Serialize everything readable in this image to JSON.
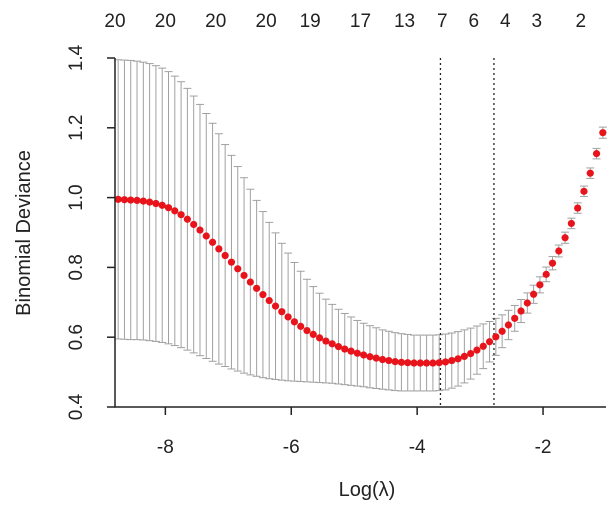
{
  "chart_data": {
    "type": "scatter",
    "xlabel": "Log(λ)",
    "ylabel": "Binomial Deviance",
    "xlim": [
      -8.8,
      -1.0
    ],
    "ylim": [
      0.4,
      1.4
    ],
    "x_ticks": [
      -8,
      -6,
      -4,
      -2
    ],
    "x_tick_labels": [
      "-8",
      "-6",
      "-4",
      "-2"
    ],
    "y_ticks": [
      0.4,
      0.6,
      0.8,
      1.0,
      1.2,
      1.4
    ],
    "y_tick_labels": [
      "0.4",
      "0.6",
      "0.8",
      "1.0",
      "1.2",
      "1.4"
    ],
    "top_axis": {
      "x": [
        -8.8,
        -8.0,
        -7.2,
        -6.4,
        -5.7,
        -4.9,
        -4.2,
        -3.6,
        -3.1,
        -2.6,
        -2.1,
        -1.4
      ],
      "labels": [
        "20",
        "20",
        "20",
        "20",
        "19",
        "17",
        "13",
        "7",
        "6",
        "4",
        "3",
        "2"
      ]
    },
    "vlines": [
      -3.63,
      -2.78
    ],
    "vline_style": "dotted",
    "point_color": "#e8141b",
    "errorbar_color": "#a0a0a0",
    "x": [
      -8.75,
      -8.65,
      -8.55,
      -8.45,
      -8.35,
      -8.25,
      -8.15,
      -8.05,
      -7.95,
      -7.85,
      -7.75,
      -7.65,
      -7.55,
      -7.45,
      -7.35,
      -7.25,
      -7.15,
      -7.05,
      -6.95,
      -6.85,
      -6.75,
      -6.65,
      -6.55,
      -6.45,
      -6.35,
      -6.25,
      -6.15,
      -6.05,
      -5.95,
      -5.85,
      -5.75,
      -5.65,
      -5.55,
      -5.45,
      -5.35,
      -5.25,
      -5.15,
      -5.05,
      -4.95,
      -4.85,
      -4.75,
      -4.65,
      -4.55,
      -4.45,
      -4.35,
      -4.25,
      -4.15,
      -4.05,
      -3.95,
      -3.85,
      -3.75,
      -3.65,
      -3.55,
      -3.45,
      -3.35,
      -3.25,
      -3.15,
      -3.05,
      -2.95,
      -2.85,
      -2.75,
      -2.65,
      -2.55,
      -2.45,
      -2.35,
      -2.25,
      -2.15,
      -2.05,
      -1.95,
      -1.85,
      -1.75,
      -1.65,
      -1.55,
      -1.45,
      -1.35,
      -1.25,
      -1.15,
      -1.05
    ],
    "y": [
      0.995,
      0.994,
      0.993,
      0.992,
      0.99,
      0.987,
      0.983,
      0.978,
      0.971,
      0.962,
      0.951,
      0.938,
      0.923,
      0.907,
      0.89,
      0.872,
      0.853,
      0.834,
      0.815,
      0.796,
      0.777,
      0.758,
      0.74,
      0.722,
      0.705,
      0.689,
      0.673,
      0.658,
      0.644,
      0.631,
      0.619,
      0.608,
      0.598,
      0.589,
      0.581,
      0.573,
      0.566,
      0.56,
      0.554,
      0.549,
      0.544,
      0.54,
      0.536,
      0.533,
      0.53,
      0.528,
      0.527,
      0.526,
      0.526,
      0.526,
      0.526,
      0.527,
      0.529,
      0.533,
      0.538,
      0.545,
      0.553,
      0.563,
      0.574,
      0.587,
      0.601,
      0.617,
      0.635,
      0.654,
      0.675,
      0.698,
      0.723,
      0.75,
      0.78,
      0.812,
      0.847,
      0.885,
      0.926,
      0.97,
      1.018,
      1.07,
      1.126,
      1.186
    ],
    "se": [
      0.4,
      0.4,
      0.4,
      0.399,
      0.398,
      0.397,
      0.395,
      0.393,
      0.39,
      0.386,
      0.381,
      0.375,
      0.368,
      0.36,
      0.351,
      0.341,
      0.33,
      0.318,
      0.306,
      0.293,
      0.28,
      0.266,
      0.252,
      0.238,
      0.224,
      0.21,
      0.196,
      0.183,
      0.17,
      0.158,
      0.147,
      0.137,
      0.128,
      0.12,
      0.113,
      0.107,
      0.102,
      0.098,
      0.094,
      0.091,
      0.089,
      0.087,
      0.085,
      0.084,
      0.083,
      0.082,
      0.081,
      0.08,
      0.08,
      0.08,
      0.08,
      0.08,
      0.08,
      0.079,
      0.078,
      0.076,
      0.073,
      0.069,
      0.064,
      0.058,
      0.053,
      0.047,
      0.042,
      0.037,
      0.033,
      0.029,
      0.026,
      0.023,
      0.021,
      0.019,
      0.017,
      0.016,
      0.015,
      0.015,
      0.015,
      0.015,
      0.015,
      0.016
    ]
  }
}
